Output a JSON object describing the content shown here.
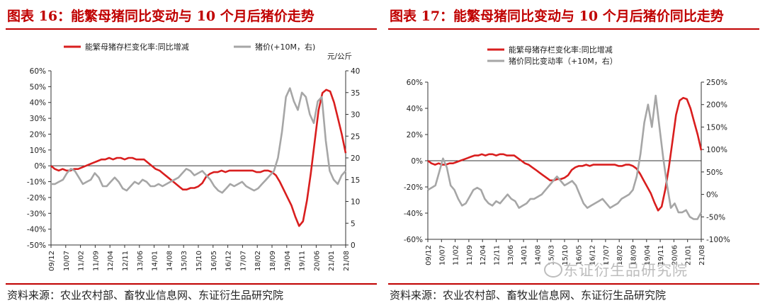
{
  "figure16": {
    "title": "图表 16：能繁母猪同比变动与 10 个月后猪价走势",
    "source": "资料来源：农业农村部、畜牧业信息网、东证衍生品研究院"
  },
  "figure17": {
    "title": "图表 17：能繁母猪同比变动与 10 个月后猪价同比走势",
    "source": "资料来源：农业农村部、畜牧业信息网、东证衍生品研究院"
  },
  "watermark": "东证衍生品研究院",
  "colors": {
    "red": "#d91e1e",
    "gray": "#a6a6a6",
    "accent": "#c00000"
  },
  "chart_data": [
    {
      "type": "line",
      "legend_placement": "top",
      "x_ticks": [
        "09/12",
        "10/07",
        "11/02",
        "11/09",
        "12/04",
        "12/11",
        "13/06",
        "14/01",
        "14/08",
        "15/03",
        "15/10",
        "16/05",
        "16/12",
        "17/07",
        "18/02",
        "18/09",
        "19/04",
        "19/11",
        "20/06",
        "21/01",
        "21/08"
      ],
      "y_left": {
        "range": [
          -50,
          60
        ],
        "step": 10,
        "unit": "%",
        "ticks": [
          "60%",
          "50%",
          "40%",
          "30%",
          "20%",
          "10%",
          "0%",
          "-10%",
          "-20%",
          "-30%",
          "-40%",
          "-50%"
        ]
      },
      "y_right": {
        "range": [
          0,
          40
        ],
        "step": 5,
        "unit_label": "元/公斤",
        "ticks": [
          "40",
          "35",
          "30",
          "25",
          "20",
          "15",
          "10",
          "5",
          "0"
        ]
      },
      "series": [
        {
          "name": "能繁母猪存栏变化率:同比增减",
          "axis": "left",
          "color": "#d91e1e",
          "values": [
            0,
            -2,
            -3,
            -2,
            -3,
            -3,
            -2,
            -2,
            -1,
            0,
            1,
            2,
            3,
            4,
            4,
            5,
            4,
            5,
            5,
            4,
            5,
            5,
            4,
            4,
            4,
            2,
            0,
            -2,
            -3,
            -5,
            -7,
            -9,
            -11,
            -13,
            -15,
            -15,
            -14,
            -14,
            -13,
            -11,
            -7,
            -5,
            -4,
            -4,
            -3,
            -4,
            -3,
            -3,
            -3,
            -3,
            -3,
            -3,
            -3,
            -4,
            -4,
            -3,
            -3,
            -4,
            -6,
            -10,
            -15,
            -20,
            -25,
            -32,
            -38,
            -35,
            -22,
            -5,
            15,
            35,
            46,
            48,
            47,
            40,
            30,
            20,
            8
          ]
        },
        {
          "name": "猪价(+10M，右)",
          "axis": "right",
          "color": "#a6a6a6",
          "values": [
            14,
            14,
            14.5,
            15,
            16.5,
            17.5,
            17,
            15.5,
            14,
            14.5,
            15,
            16.5,
            15.5,
            13.5,
            13.5,
            14.5,
            15.5,
            14.5,
            13,
            12.5,
            13.5,
            14.5,
            14,
            15,
            14.5,
            13.5,
            13.5,
            14,
            13.5,
            14,
            14.5,
            15,
            15.5,
            16.5,
            17.5,
            17,
            16,
            16.5,
            17,
            16,
            15,
            13.5,
            12.5,
            12,
            13,
            14,
            13.5,
            14,
            14.5,
            13.5,
            13,
            12.5,
            13,
            14,
            15,
            16,
            17,
            20,
            26,
            34,
            36,
            33,
            31,
            35,
            34,
            30,
            28,
            33,
            34,
            24,
            17,
            15,
            14,
            16,
            17
          ]
        }
      ]
    },
    {
      "type": "line",
      "legend_placement": "top",
      "x_ticks": [
        "09/12",
        "10/07",
        "11/02",
        "11/09",
        "12/04",
        "12/11",
        "13/06",
        "14/01",
        "14/08",
        "15/03",
        "15/10",
        "16/05",
        "16/12",
        "17/07",
        "18/02",
        "18/09",
        "19/04",
        "19/11",
        "20/06",
        "21/01",
        "21/08"
      ],
      "y_left": {
        "range": [
          -60,
          60
        ],
        "step": 20,
        "unit": "%",
        "ticks": [
          "60%",
          "40%",
          "20%",
          "0%",
          "-20%",
          "-40%",
          "-60%"
        ]
      },
      "y_right": {
        "range": [
          -100,
          250
        ],
        "step": 50,
        "unit": "%",
        "ticks": [
          "250%",
          "200%",
          "150%",
          "100%",
          "50%",
          "0%",
          "-50%",
          "-100%"
        ]
      },
      "series": [
        {
          "name": "能繁母猪存栏变化率:同比增减",
          "axis": "left",
          "color": "#d91e1e",
          "values": [
            0,
            -2,
            -3,
            -2,
            -3,
            -3,
            -2,
            -2,
            -1,
            0,
            1,
            2,
            3,
            4,
            4,
            5,
            4,
            5,
            5,
            4,
            5,
            5,
            4,
            4,
            4,
            2,
            0,
            -2,
            -3,
            -5,
            -7,
            -9,
            -11,
            -13,
            -15,
            -15,
            -14,
            -14,
            -13,
            -11,
            -7,
            -5,
            -4,
            -4,
            -3,
            -4,
            -3,
            -3,
            -3,
            -3,
            -3,
            -3,
            -3,
            -4,
            -4,
            -3,
            -3,
            -4,
            -6,
            -10,
            -15,
            -20,
            -25,
            -32,
            -38,
            -35,
            -22,
            -5,
            15,
            35,
            46,
            48,
            47,
            40,
            30,
            20,
            8
          ]
        },
        {
          "name": "猪价同比变动率（+10M，右）",
          "axis": "right",
          "color": "#a6a6a6",
          "values": [
            10,
            15,
            20,
            50,
            80,
            60,
            20,
            10,
            -10,
            -25,
            -20,
            -5,
            10,
            15,
            10,
            -10,
            -20,
            -25,
            -15,
            -20,
            -10,
            0,
            -10,
            -15,
            -30,
            -25,
            -20,
            -10,
            -10,
            -5,
            0,
            10,
            20,
            30,
            40,
            30,
            20,
            25,
            30,
            20,
            0,
            -20,
            -30,
            -25,
            -20,
            -15,
            -10,
            -20,
            -30,
            -25,
            -20,
            -10,
            -5,
            0,
            10,
            40,
            90,
            160,
            200,
            150,
            220,
            150,
            80,
            20,
            -30,
            -20,
            -40,
            -40,
            -35,
            -50,
            -55,
            -55,
            -40
          ]
        }
      ]
    }
  ]
}
